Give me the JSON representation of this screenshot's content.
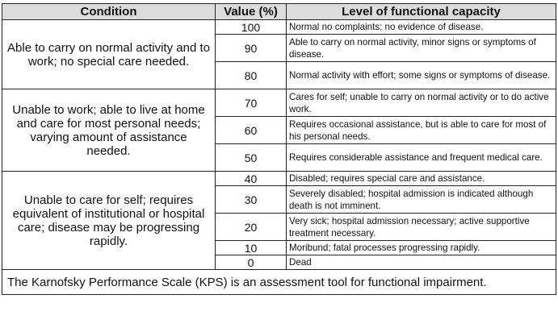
{
  "headers": {
    "condition": "Condition",
    "value": "Value (%)",
    "level": "Level of functional capacity"
  },
  "groups": [
    {
      "condition": "Able to carry on normal activity and to work; no special care needed.",
      "rows": [
        {
          "value": "100",
          "level": "Normal no complaints; no evidence of disease."
        },
        {
          "value": "90",
          "level": "Able to carry on normal activity, minor signs or symptoms of disease."
        },
        {
          "value": "80",
          "level": "Normal activity with effort; some signs or symptoms of disease."
        }
      ]
    },
    {
      "condition": "Unable to work; able to live at home and care for most personal needs; varying amount of assistance needed.",
      "rows": [
        {
          "value": "70",
          "level": "Cares for self; unable to carry on normal activity or to do active work."
        },
        {
          "value": "60",
          "level": "Requires occasional assistance, but is able to care for most of his personal needs."
        },
        {
          "value": "50",
          "level": "Requires considerable assistance and frequent medical care."
        }
      ]
    },
    {
      "condition": "Unable to care for self; requires equivalent of institutional or hospital care; disease may be progressing rapidly.",
      "rows": [
        {
          "value": "40",
          "level": "Disabled; requires special care and assistance."
        },
        {
          "value": "30",
          "level": "Severely disabled; hospital admission is indicated although death is not imminent."
        },
        {
          "value": "20",
          "level": "Very sick; hospital admission necessary; active supportive treatment necessary."
        },
        {
          "value": "10",
          "level": "Moribund; fatal processes progressing rapidly."
        },
        {
          "value": "0",
          "level": "Dead"
        }
      ]
    }
  ],
  "caption": "The Karnofsky Performance Scale (KPS) is an assessment tool for functional impairment."
}
